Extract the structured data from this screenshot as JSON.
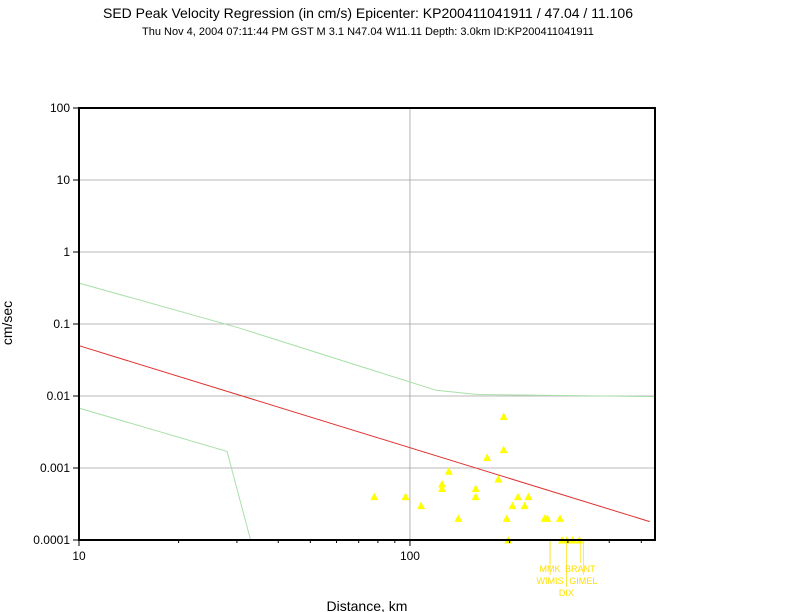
{
  "chart_data": {
    "type": "scatter",
    "title": "SED Peak Velocity Regression (in cm/s) Epicenter: KP200411041911 / 47.04 / 11.106",
    "subtitle": "Thu Nov  4, 2004 07:11:44 PM GST    M 3.1    N47.04 W11.11    Depth: 3.0km    ID:KP200411041911",
    "xlabel": "Distance, km",
    "ylabel": "cm/sec",
    "x_scale": "log",
    "y_scale": "log",
    "xlim": [
      10,
      550
    ],
    "ylim": [
      0.0001,
      100
    ],
    "x_ticks": [
      {
        "value": 10,
        "label": "10"
      },
      {
        "value": 100,
        "label": "100"
      }
    ],
    "y_ticks": [
      {
        "value": 100,
        "label": "100"
      },
      {
        "value": 10,
        "label": "10"
      },
      {
        "value": 1,
        "label": "1"
      },
      {
        "value": 0.1,
        "label": "0.1"
      },
      {
        "value": 0.01,
        "label": "0.01"
      },
      {
        "value": 0.001,
        "label": "0.001"
      },
      {
        "value": 0.0001,
        "label": "0.0001"
      }
    ],
    "grid": true,
    "colors": {
      "regression": "#e03030",
      "bounds": "#a8e0a8",
      "stations": "#ffff00",
      "station_labels": "#ffe000",
      "grid": "#a0a0a0"
    },
    "regression_line": [
      [
        10,
        0.05
      ],
      [
        530,
        0.00018
      ]
    ],
    "upper_bound": [
      [
        10,
        0.37
      ],
      [
        30,
        0.09
      ],
      [
        120,
        0.012
      ],
      [
        160,
        0.0105
      ],
      [
        550,
        0.0098
      ]
    ],
    "lower_bound": [
      [
        10,
        0.0068
      ],
      [
        28,
        0.0017
      ],
      [
        33,
        0.0001
      ]
    ],
    "stations": [
      {
        "x": 78,
        "y": 0.0004
      },
      {
        "x": 97,
        "y": 0.0004
      },
      {
        "x": 108,
        "y": 0.0003
      },
      {
        "x": 125,
        "y": 0.00052
      },
      {
        "x": 125,
        "y": 0.0006
      },
      {
        "x": 131,
        "y": 0.0009
      },
      {
        "x": 140,
        "y": 0.0002
      },
      {
        "x": 158,
        "y": 0.00052
      },
      {
        "x": 158,
        "y": 0.0004
      },
      {
        "x": 171,
        "y": 0.0014
      },
      {
        "x": 185,
        "y": 0.0007
      },
      {
        "x": 192,
        "y": 0.0052
      },
      {
        "x": 192,
        "y": 0.0018
      },
      {
        "x": 196,
        "y": 0.0002
      },
      {
        "x": 204,
        "y": 0.0003
      },
      {
        "x": 212,
        "y": 0.0004
      },
      {
        "x": 222,
        "y": 0.0003
      },
      {
        "x": 228,
        "y": 0.0004
      },
      {
        "x": 198,
        "y": 0.0001
      },
      {
        "x": 255,
        "y": 0.0002
      },
      {
        "x": 260,
        "y": 0.0002
      },
      {
        "x": 284,
        "y": 0.0002
      },
      {
        "x": 288,
        "y": 0.0001
      },
      {
        "x": 298,
        "y": 0.0001
      },
      {
        "x": 310,
        "y": 0.0001
      },
      {
        "x": 325,
        "y": 0.0001
      }
    ],
    "station_labels": [
      {
        "text": "MMK",
        "x": 265,
        "row": 1
      },
      {
        "text": "WIMIS",
        "x": 265,
        "row": 2
      },
      {
        "text": "DIX",
        "x": 297,
        "row": 3
      },
      {
        "text": "BRANT",
        "x": 327,
        "row": 1
      },
      {
        "text": "GIMEL",
        "x": 334,
        "row": 2
      }
    ]
  }
}
